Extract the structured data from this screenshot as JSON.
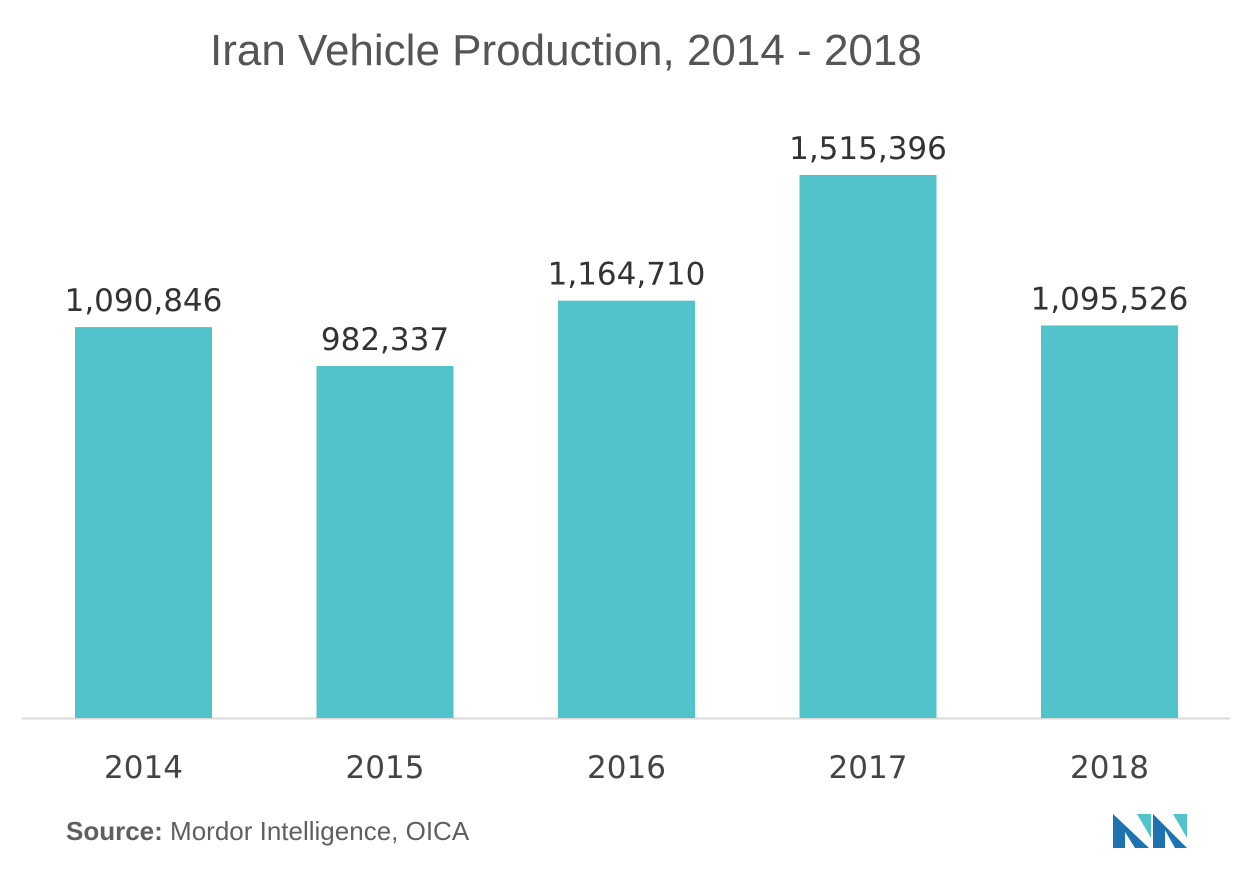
{
  "chart_data": {
    "type": "bar",
    "title": "Iran Vehicle Production, 2014 - 2018",
    "categories": [
      "2014",
      "2015",
      "2016",
      "2017",
      "2018"
    ],
    "values": [
      1090846,
      982337,
      1164710,
      1515396,
      1095526
    ],
    "value_labels": [
      "1,090,846",
      "982,337",
      "1,164,710",
      "1,515,396",
      "1,095,526"
    ],
    "xlabel": "",
    "ylabel": "",
    "ylim": [
      0,
      1515396
    ],
    "grid": false,
    "legend": "none",
    "bar_color": "#52c3ca",
    "axis_color": "#d9d9d9"
  },
  "source": {
    "label": "Source:",
    "text": " Mordor Intelligence, OICA"
  },
  "logo": {
    "icon": "mordor-intelligence-logo-icon",
    "colors": [
      "#1e72b0",
      "#52c3ca"
    ]
  }
}
